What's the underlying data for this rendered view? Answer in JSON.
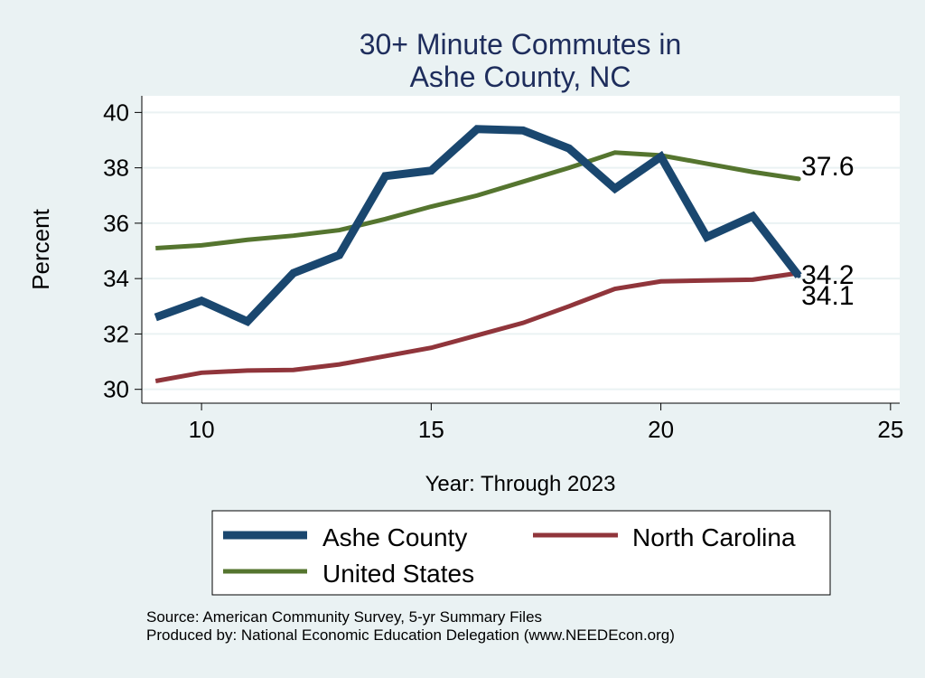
{
  "chart_data": {
    "type": "line",
    "title_lines": [
      "30+ Minute Commutes in",
      "Ashe County, NC"
    ],
    "xlabel": "Year: Through 2023",
    "ylabel": "Percent",
    "xlim": [
      8.7,
      25.2
    ],
    "ylim": [
      29.5,
      40.6
    ],
    "xticks": [
      10,
      15,
      20,
      25
    ],
    "yticks": [
      30,
      32,
      34,
      36,
      38,
      40
    ],
    "grid": true,
    "legend_position": "bottom",
    "series": [
      {
        "name": "Ashe County",
        "color": "#1a476f",
        "x": [
          9,
          10,
          11,
          12,
          13,
          14,
          15,
          16,
          17,
          18,
          19,
          20,
          21,
          22,
          23
        ],
        "y": [
          32.6,
          33.2,
          32.45,
          34.2,
          34.85,
          37.7,
          37.9,
          39.4,
          39.35,
          38.7,
          37.25,
          38.4,
          35.5,
          36.25,
          34.1
        ],
        "end_label": "34.1"
      },
      {
        "name": "North Carolina",
        "color": "#90353b",
        "x": [
          9,
          10,
          11,
          12,
          13,
          14,
          15,
          16,
          17,
          18,
          19,
          20,
          21,
          22,
          23
        ],
        "y": [
          30.3,
          30.6,
          30.68,
          30.7,
          30.9,
          31.2,
          31.5,
          31.95,
          32.4,
          33.0,
          33.63,
          33.9,
          33.93,
          33.96,
          34.2
        ],
        "end_label": "34.2"
      },
      {
        "name": "United States",
        "color": "#55752f",
        "x": [
          9,
          10,
          11,
          12,
          13,
          14,
          15,
          16,
          17,
          18,
          19,
          20,
          21,
          22,
          23
        ],
        "y": [
          35.1,
          35.2,
          35.4,
          35.55,
          35.75,
          36.15,
          36.6,
          37.0,
          37.5,
          38.0,
          38.55,
          38.45,
          38.15,
          37.85,
          37.6
        ],
        "end_label": "37.6"
      }
    ],
    "legend": [
      "Ashe County",
      "North Carolina",
      "United States"
    ],
    "notes": [
      "Source: American Community Survey, 5-yr Summary Files",
      "Produced by: National Economic Education Delegation (www.NEEDEcon.org)"
    ]
  },
  "colors": {
    "background": "#eaf2f3",
    "plot_background": "#ffffff",
    "grid": "#eaf2f3",
    "title": "#1e2d5c"
  }
}
